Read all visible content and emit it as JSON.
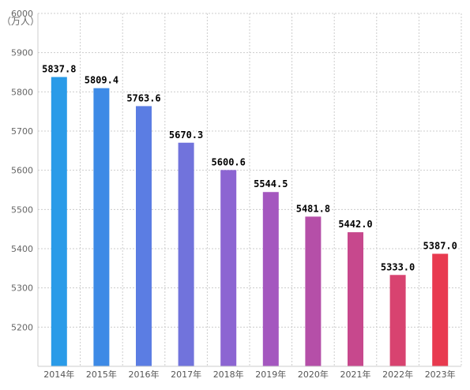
{
  "chart_data": {
    "type": "bar",
    "unit_label": "（万人）",
    "categories": [
      "2014年",
      "2015年",
      "2016年",
      "2017年",
      "2018年",
      "2019年",
      "2020年",
      "2021年",
      "2022年",
      "2023年"
    ],
    "values": [
      5837.8,
      5809.4,
      5763.6,
      5670.3,
      5600.6,
      5544.5,
      5481.8,
      5442.0,
      5333.0,
      5387.0
    ],
    "data_labels": [
      "5837.8",
      "5809.4",
      "5763.6",
      "5670.3",
      "5600.6",
      "5544.5",
      "5481.8",
      "5442.0",
      "5333.0",
      "5387.0"
    ],
    "y_ticks": [
      "5200",
      "5300",
      "5400",
      "5500",
      "5600",
      "5700",
      "5800",
      "5900",
      "6000"
    ],
    "ylim": [
      5100,
      6000
    ],
    "grid": true,
    "bar_colors": [
      "#2a9be8",
      "#3d8ae6",
      "#5b7de3",
      "#7173dc",
      "#8c65d2",
      "#a457bf",
      "#b54fa8",
      "#c7488d",
      "#d84370",
      "#e83a4f"
    ],
    "colors": {
      "grid": "#cccccc",
      "axis": "#cccccc"
    }
  }
}
